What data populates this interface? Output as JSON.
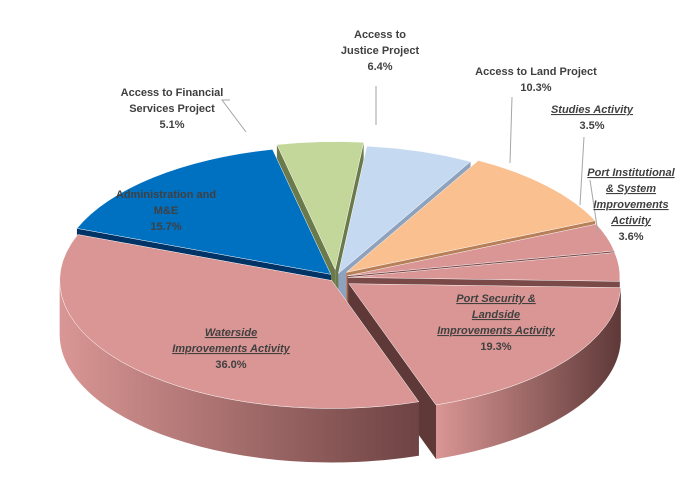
{
  "chart_data": {
    "type": "pie",
    "style": "3d-exploded",
    "slices": [
      {
        "label_lines": [
          "Access to",
          "Justice Project"
        ],
        "value_text": "6.4%",
        "value": 6.4,
        "color": "#c5d9f1",
        "side": "#8ea2bd",
        "italic": false
      },
      {
        "label_lines": [
          "Access to Land Project"
        ],
        "value_text": "10.3%",
        "value": 10.3,
        "color": "#fac090",
        "side": "#b88058",
        "italic": false
      },
      {
        "label_lines": [
          "Studies Activity"
        ],
        "value_text": "3.5%",
        "value": 3.5,
        "color": "#d99694",
        "side": "#7a4a49",
        "italic": true
      },
      {
        "label_lines": [
          "Port Institutional",
          "& System",
          "Improvements",
          "Activity"
        ],
        "value_text": "3.6%",
        "value": 3.6,
        "color": "#d99694",
        "side": "#7a4a49",
        "italic": true
      },
      {
        "label_lines": [
          "Port Security &",
          "Landside",
          "Improvements Activity"
        ],
        "value_text": "19.3%",
        "value": 19.3,
        "color": "#d99694",
        "side": "#5e3938",
        "italic": true
      },
      {
        "label_lines": [
          "Waterside",
          "Improvements Activity"
        ],
        "value_text": "36.0%",
        "value": 36.0,
        "color": "#d99694",
        "side": "#6e4343",
        "italic": true
      },
      {
        "label_lines": [
          "Administration and",
          "M&E"
        ],
        "value_text": "15.7%",
        "value": 15.7,
        "color": "#0070c0",
        "side": "#003366",
        "italic": false
      },
      {
        "label_lines": [
          "Access to Financial",
          "Services Project"
        ],
        "value_text": "5.1%",
        "value": 5.1,
        "color": "#c4d79b",
        "side": "#6b7a4a",
        "italic": false
      }
    ]
  }
}
